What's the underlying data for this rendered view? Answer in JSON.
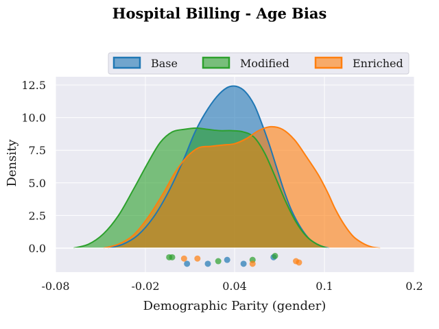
{
  "chart_data": {
    "type": "area",
    "title": "Hospital Billing - Age Bias",
    "xlabel": "Demographic Parity (gender)",
    "ylabel": "Density",
    "xlim": [
      -0.08,
      0.2
    ],
    "ylim": [
      -1.8,
      13.0
    ],
    "x_ticks": [
      -0.08,
      -0.02,
      0.04,
      0.1,
      0.2
    ],
    "x_tick_labels": [
      "-0.08",
      "-0.02",
      "0.04",
      "0.1",
      "0.2"
    ],
    "y_ticks": [
      0.0,
      2.5,
      5.0,
      7.5,
      10.0,
      12.5
    ],
    "y_tick_labels": [
      "0.0",
      "2.5",
      "5.0",
      "7.5",
      "10.0",
      "12.5"
    ],
    "grid": true,
    "legend_position": "top-center",
    "series": [
      {
        "name": "Base",
        "color": "#1f77b4",
        "curve": [
          [
            -0.045,
            0.0
          ],
          [
            -0.035,
            0.3
          ],
          [
            -0.025,
            1.0
          ],
          [
            -0.015,
            2.3
          ],
          [
            -0.005,
            4.2
          ],
          [
            0.005,
            6.6
          ],
          [
            0.013,
            8.8
          ],
          [
            0.02,
            10.3
          ],
          [
            0.028,
            11.6
          ],
          [
            0.035,
            12.3
          ],
          [
            0.041,
            12.4
          ],
          [
            0.047,
            12.0
          ],
          [
            0.053,
            11.0
          ],
          [
            0.058,
            9.6
          ],
          [
            0.063,
            8.0
          ],
          [
            0.068,
            6.2
          ],
          [
            0.073,
            4.4
          ],
          [
            0.078,
            2.9
          ],
          [
            0.084,
            1.6
          ],
          [
            0.09,
            0.7
          ],
          [
            0.097,
            0.2
          ],
          [
            0.105,
            0.0
          ]
        ],
        "points": [
          [
            0.022,
            -1.2
          ],
          [
            0.008,
            -1.2
          ],
          [
            0.035,
            -0.9
          ],
          [
            0.046,
            -1.2
          ],
          [
            0.066,
            -0.7
          ]
        ]
      },
      {
        "name": "Modified",
        "color": "#2ca02c",
        "curve": [
          [
            -0.068,
            0.0
          ],
          [
            -0.058,
            0.3
          ],
          [
            -0.048,
            1.1
          ],
          [
            -0.038,
            2.5
          ],
          [
            -0.028,
            4.5
          ],
          [
            -0.018,
            6.6
          ],
          [
            -0.01,
            8.1
          ],
          [
            -0.002,
            8.9
          ],
          [
            0.006,
            9.1
          ],
          [
            0.014,
            9.2
          ],
          [
            0.022,
            9.1
          ],
          [
            0.03,
            9.0
          ],
          [
            0.038,
            9.0
          ],
          [
            0.046,
            8.9
          ],
          [
            0.053,
            8.5
          ],
          [
            0.06,
            7.3
          ],
          [
            0.067,
            5.5
          ],
          [
            0.074,
            3.6
          ],
          [
            0.081,
            2.0
          ],
          [
            0.088,
            0.9
          ],
          [
            0.095,
            0.3
          ],
          [
            0.103,
            0.0
          ]
        ],
        "points": [
          [
            -0.004,
            -0.7
          ],
          [
            -0.002,
            -0.7
          ],
          [
            0.029,
            -1.0
          ],
          [
            0.052,
            -0.9
          ],
          [
            0.067,
            -0.6
          ]
        ]
      },
      {
        "name": "Enriched",
        "color": "#ff7f0e",
        "curve": [
          [
            -0.048,
            0.0
          ],
          [
            -0.038,
            0.3
          ],
          [
            -0.028,
            1.0
          ],
          [
            -0.018,
            2.4
          ],
          [
            -0.008,
            4.2
          ],
          [
            0.0,
            5.8
          ],
          [
            0.008,
            7.0
          ],
          [
            0.016,
            7.7
          ],
          [
            0.024,
            7.8
          ],
          [
            0.032,
            7.9
          ],
          [
            0.04,
            8.0
          ],
          [
            0.048,
            8.4
          ],
          [
            0.056,
            9.0
          ],
          [
            0.064,
            9.3
          ],
          [
            0.072,
            9.1
          ],
          [
            0.08,
            8.3
          ],
          [
            0.088,
            7.0
          ],
          [
            0.096,
            5.6
          ],
          [
            0.104,
            4.2
          ],
          [
            0.112,
            3.0
          ],
          [
            0.122,
            1.8
          ],
          [
            0.132,
            0.9
          ],
          [
            0.142,
            0.4
          ],
          [
            0.152,
            0.1
          ],
          [
            0.162,
            0.0
          ]
        ],
        "points": [
          [
            0.006,
            -0.8
          ],
          [
            0.015,
            -0.8
          ],
          [
            0.052,
            -1.2
          ],
          [
            0.081,
            -1.0
          ],
          [
            0.083,
            -1.1
          ]
        ]
      }
    ]
  }
}
